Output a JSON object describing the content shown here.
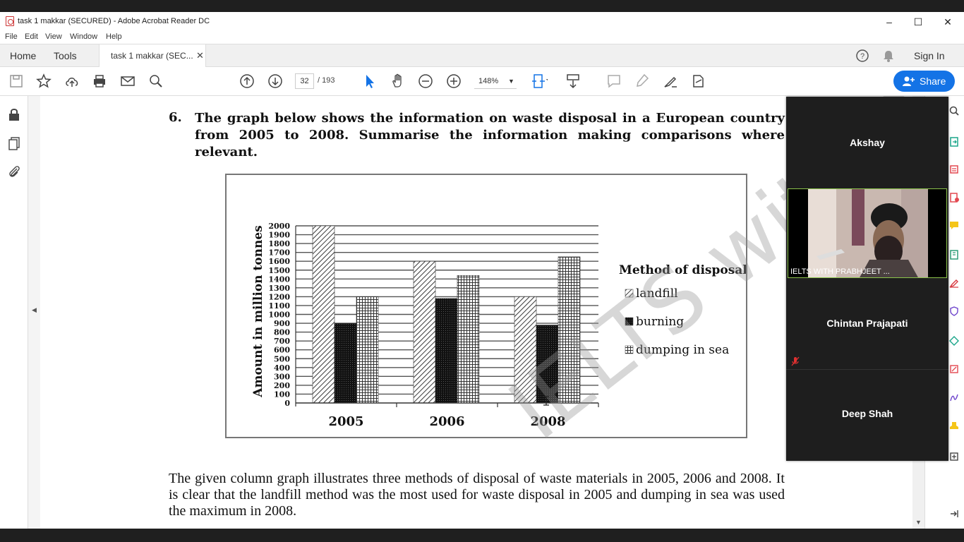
{
  "window": {
    "title": "task 1 makkar (SECURED) - Adobe Acrobat Reader DC"
  },
  "menu": [
    "File",
    "Edit",
    "View",
    "Window",
    "Help"
  ],
  "nav": {
    "home": "Home",
    "tools": "Tools",
    "doc_tab": "task 1 makkar (SEC...",
    "sign_in": "Sign In"
  },
  "toolbar": {
    "page_current": "32",
    "page_total": "/   193",
    "zoom": "148%",
    "share": "Share"
  },
  "document": {
    "question_number": "6.",
    "question": "The graph below shows the information on waste disposal in a European country from 2005 to 2008. Summarise the information making comparisons where relevant.",
    "paragraph": "The given column graph illustrates three methods of disposal of waste materials in 2005, 2006 and 2008. It is clear that the landfill method was the most used for waste disposal in 2005 and dumping in sea was used the maximum in 2008.",
    "watermark": "IELTS with Prabhjeet"
  },
  "chart_data": {
    "type": "bar",
    "categories": [
      "2005",
      "2006",
      "2008"
    ],
    "series": [
      {
        "name": "landfill",
        "values": [
          2000,
          1600,
          1200
        ]
      },
      {
        "name": "burning",
        "values": [
          900,
          1180,
          880
        ]
      },
      {
        "name": "dumping in sea",
        "values": [
          1200,
          1440,
          1650
        ]
      }
    ],
    "ylabel": "Amount in million tonnes",
    "ylim": [
      0,
      2000
    ],
    "yticks": [
      0,
      100,
      200,
      300,
      400,
      500,
      600,
      700,
      800,
      900,
      1000,
      1100,
      1200,
      1300,
      1400,
      1500,
      1600,
      1700,
      1800,
      1900,
      2000
    ],
    "legend_title": "Method of disposal",
    "legend_position": "right",
    "grid": true
  },
  "meeting": {
    "participants": [
      {
        "name": "Akshay"
      },
      {
        "name": "IELTS WITH PRABHJEET ..."
      },
      {
        "name": "Chintan Prajapati"
      },
      {
        "name": "Deep Shah"
      }
    ],
    "active_border": "#8bc34a"
  },
  "colors": {
    "accent": "#1473e6"
  }
}
